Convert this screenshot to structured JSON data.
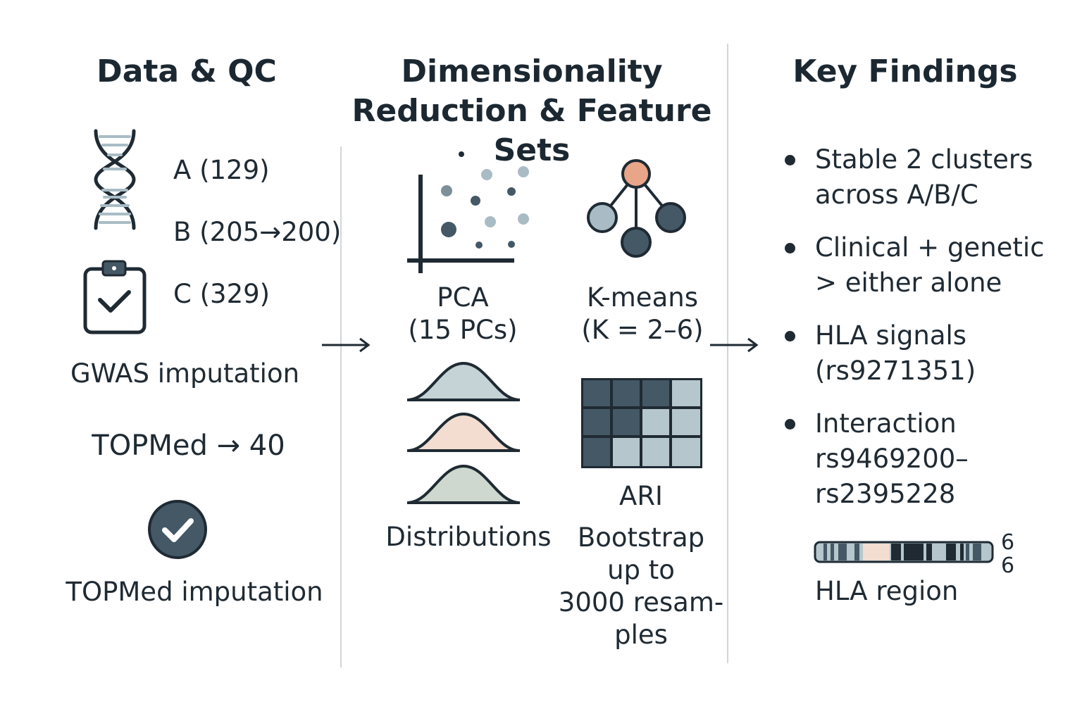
{
  "columns": {
    "data_qc": {
      "title": "Data & QC",
      "cohorts": [
        "A (129)",
        "B (205→200)",
        "C (329)"
      ],
      "gwas_label": "GWAS imputation",
      "topmed_count": "TOPMed → 40",
      "topmed_label": "TOPMed imputation"
    },
    "dim_reduction": {
      "title_line1": "Dimensionality",
      "title_line2": "Reduction & Feature Sets",
      "pca_label": "PCA",
      "pca_sub": "(15 PCs)",
      "kmeans_label": "K-means",
      "kmeans_sub": "(K = 2–6)",
      "distributions_label": "Distributions",
      "ari_label": "ARI",
      "bootstrap_lines": [
        "Bootstrap",
        "up to",
        "3000 resam-",
        "ples"
      ]
    },
    "key_findings": {
      "title": "Key Findings",
      "findings": [
        [
          "Stable 2 clusters",
          "across A/B/C"
        ],
        [
          "Clinical + genetic",
          "> either alone"
        ],
        [
          "HLA signals",
          "(rs9271351)"
        ],
        [
          "Interaction",
          "rs9469200–",
          "rs2395228"
        ]
      ],
      "chromosome_number": "6",
      "chromosome_number_2": "6",
      "hla_label": "HLA region"
    }
  },
  "colors": {
    "dark_slate": "#445866",
    "light_slate": "#a9bcc5",
    "peach": "#e8a588",
    "peach_light": "#f2ddd0",
    "grey_green": "#cfd8cf",
    "blue_grey": "#c5d2d6"
  },
  "icons": [
    "dna-icon",
    "clipboard-check-icon",
    "check-circle-icon",
    "scatter-plot-icon",
    "cluster-tree-icon",
    "distribution-curves-icon",
    "heatmap-grid-icon",
    "chromosome-icon",
    "arrow-right-icon"
  ]
}
